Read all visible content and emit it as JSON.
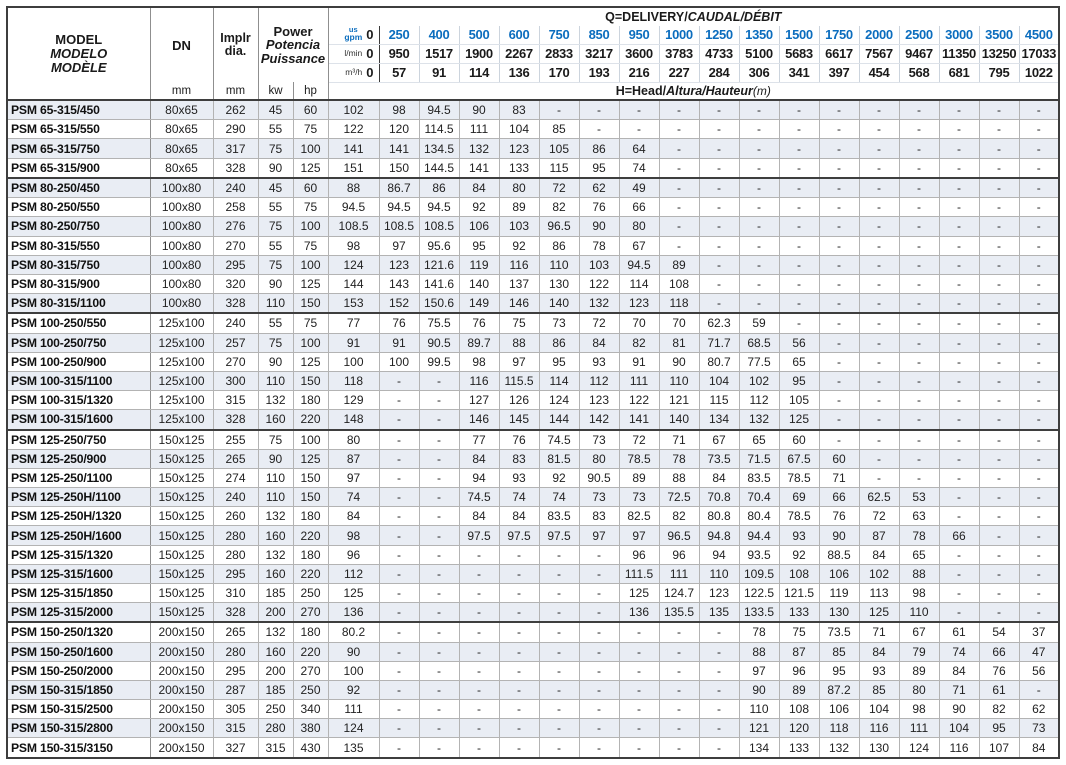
{
  "colors": {
    "accent_blue": "#0b6dbe",
    "row_shade": "#e9edf4",
    "grid_line": "#b3b3b3",
    "heavy_line": "#3e3e3e"
  },
  "header": {
    "model_label": [
      "MODEL",
      "MODELO",
      "MODÈLE"
    ],
    "dn_label": "DN",
    "impeller_label": [
      "Implr",
      "dia."
    ],
    "power_label": [
      "Power",
      "Potencia",
      "Puissance"
    ],
    "units": {
      "dn_unit": "mm",
      "dia_unit": "mm",
      "kw": "kw",
      "hp": "hp"
    },
    "q_title": {
      "plain": "Q=DELIVERY/",
      "italic": "CAUDAL/DÉBIT"
    },
    "h_title": {
      "plain": "H=Head/",
      "italic": "Altura/Hauteur",
      "suffix": "(m)"
    },
    "flow_rows": [
      {
        "unit_top": "us",
        "unit": "gpm",
        "values": [
          "0",
          "250",
          "400",
          "500",
          "600",
          "750",
          "850",
          "950",
          "1000",
          "1250",
          "1350",
          "1500",
          "1750",
          "2000",
          "2500",
          "3000",
          "3500",
          "4500"
        ]
      },
      {
        "unit_top": "",
        "unit": "l/min",
        "values": [
          "0",
          "950",
          "1517",
          "1900",
          "2267",
          "2833",
          "3217",
          "3600",
          "3783",
          "4733",
          "5100",
          "5683",
          "6617",
          "7567",
          "9467",
          "11350",
          "13250",
          "17033"
        ]
      },
      {
        "unit_top": "",
        "unit": "m³/h",
        "values": [
          "0",
          "57",
          "91",
          "114",
          "136",
          "170",
          "193",
          "216",
          "227",
          "284",
          "306",
          "341",
          "397",
          "454",
          "568",
          "681",
          "795",
          "1022"
        ]
      }
    ]
  },
  "rows": [
    {
      "model": "PSM 65-315/450",
      "dn": "80x65",
      "dia": "262",
      "kw": "45",
      "hp": "60",
      "heads": [
        "102",
        "98",
        "94.5",
        "90",
        "83",
        "-",
        "-",
        "-",
        "-",
        "-",
        "-",
        "-",
        "-",
        "-",
        "-",
        "-",
        "-",
        "-"
      ]
    },
    {
      "model": "PSM 65-315/550",
      "dn": "80x65",
      "dia": "290",
      "kw": "55",
      "hp": "75",
      "heads": [
        "122",
        "120",
        "114.5",
        "111",
        "104",
        "85",
        "-",
        "-",
        "-",
        "-",
        "-",
        "-",
        "-",
        "-",
        "-",
        "-",
        "-",
        "-"
      ]
    },
    {
      "model": "PSM 65-315/750",
      "dn": "80x65",
      "dia": "317",
      "kw": "75",
      "hp": "100",
      "heads": [
        "141",
        "141",
        "134.5",
        "132",
        "123",
        "105",
        "86",
        "64",
        "-",
        "-",
        "-",
        "-",
        "-",
        "-",
        "-",
        "-",
        "-",
        "-"
      ]
    },
    {
      "model": "PSM 65-315/900",
      "dn": "80x65",
      "dia": "328",
      "kw": "90",
      "hp": "125",
      "heads": [
        "151",
        "150",
        "144.5",
        "141",
        "133",
        "115",
        "95",
        "74",
        "-",
        "-",
        "-",
        "-",
        "-",
        "-",
        "-",
        "-",
        "-",
        "-"
      ]
    },
    {
      "model": "PSM 80-250/450",
      "dn": "100x80",
      "dia": "240",
      "kw": "45",
      "hp": "60",
      "heads": [
        "88",
        "86.7",
        "86",
        "84",
        "80",
        "72",
        "62",
        "49",
        "-",
        "-",
        "-",
        "-",
        "-",
        "-",
        "-",
        "-",
        "-",
        "-"
      ]
    },
    {
      "model": "PSM 80-250/550",
      "dn": "100x80",
      "dia": "258",
      "kw": "55",
      "hp": "75",
      "heads": [
        "94.5",
        "94.5",
        "94.5",
        "92",
        "89",
        "82",
        "76",
        "66",
        "-",
        "-",
        "-",
        "-",
        "-",
        "-",
        "-",
        "-",
        "-",
        "-"
      ]
    },
    {
      "model": "PSM 80-250/750",
      "dn": "100x80",
      "dia": "276",
      "kw": "75",
      "hp": "100",
      "heads": [
        "108.5",
        "108.5",
        "108.5",
        "106",
        "103",
        "96.5",
        "90",
        "80",
        "-",
        "-",
        "-",
        "-",
        "-",
        "-",
        "-",
        "-",
        "-",
        "-"
      ]
    },
    {
      "model": "PSM 80-315/550",
      "dn": "100x80",
      "dia": "270",
      "kw": "55",
      "hp": "75",
      "heads": [
        "98",
        "97",
        "95.6",
        "95",
        "92",
        "86",
        "78",
        "67",
        "-",
        "-",
        "-",
        "-",
        "-",
        "-",
        "-",
        "-",
        "-",
        "-"
      ]
    },
    {
      "model": "PSM 80-315/750",
      "dn": "100x80",
      "dia": "295",
      "kw": "75",
      "hp": "100",
      "heads": [
        "124",
        "123",
        "121.6",
        "119",
        "116",
        "110",
        "103",
        "94.5",
        "89",
        "-",
        "-",
        "-",
        "-",
        "-",
        "-",
        "-",
        "-",
        "-"
      ]
    },
    {
      "model": "PSM 80-315/900",
      "dn": "100x80",
      "dia": "320",
      "kw": "90",
      "hp": "125",
      "heads": [
        "144",
        "143",
        "141.6",
        "140",
        "137",
        "130",
        "122",
        "114",
        "108",
        "-",
        "-",
        "-",
        "-",
        "-",
        "-",
        "-",
        "-",
        "-"
      ]
    },
    {
      "model": "PSM 80-315/1100",
      "dn": "100x80",
      "dia": "328",
      "kw": "110",
      "hp": "150",
      "heads": [
        "153",
        "152",
        "150.6",
        "149",
        "146",
        "140",
        "132",
        "123",
        "118",
        "-",
        "-",
        "-",
        "-",
        "-",
        "-",
        "-",
        "-",
        "-"
      ]
    },
    {
      "model": "PSM 100-250/550",
      "dn": "125x100",
      "dia": "240",
      "kw": "55",
      "hp": "75",
      "heads": [
        "77",
        "76",
        "75.5",
        "76",
        "75",
        "73",
        "72",
        "70",
        "70",
        "62.3",
        "59",
        "-",
        "-",
        "-",
        "-",
        "-",
        "-",
        "-"
      ]
    },
    {
      "model": "PSM 100-250/750",
      "dn": "125x100",
      "dia": "257",
      "kw": "75",
      "hp": "100",
      "heads": [
        "91",
        "91",
        "90.5",
        "89.7",
        "88",
        "86",
        "84",
        "82",
        "81",
        "71.7",
        "68.5",
        "56",
        "-",
        "-",
        "-",
        "-",
        "-",
        "-"
      ]
    },
    {
      "model": "PSM 100-250/900",
      "dn": "125x100",
      "dia": "270",
      "kw": "90",
      "hp": "125",
      "heads": [
        "100",
        "100",
        "99.5",
        "98",
        "97",
        "95",
        "93",
        "91",
        "90",
        "80.7",
        "77.5",
        "65",
        "-",
        "-",
        "-",
        "-",
        "-",
        "-"
      ]
    },
    {
      "model": "PSM 100-315/1100",
      "dn": "125x100",
      "dia": "300",
      "kw": "110",
      "hp": "150",
      "heads": [
        "118",
        "-",
        "-",
        "116",
        "115.5",
        "114",
        "112",
        "111",
        "110",
        "104",
        "102",
        "95",
        "-",
        "-",
        "-",
        "-",
        "-",
        "-"
      ]
    },
    {
      "model": "PSM 100-315/1320",
      "dn": "125x100",
      "dia": "315",
      "kw": "132",
      "hp": "180",
      "heads": [
        "129",
        "-",
        "-",
        "127",
        "126",
        "124",
        "123",
        "122",
        "121",
        "115",
        "112",
        "105",
        "-",
        "-",
        "-",
        "-",
        "-",
        "-"
      ]
    },
    {
      "model": "PSM 100-315/1600",
      "dn": "125x100",
      "dia": "328",
      "kw": "160",
      "hp": "220",
      "heads": [
        "148",
        "-",
        "-",
        "146",
        "145",
        "144",
        "142",
        "141",
        "140",
        "134",
        "132",
        "125",
        "-",
        "-",
        "-",
        "-",
        "-",
        "-"
      ]
    },
    {
      "model": "PSM 125-250/750",
      "dn": "150x125",
      "dia": "255",
      "kw": "75",
      "hp": "100",
      "heads": [
        "80",
        "-",
        "-",
        "77",
        "76",
        "74.5",
        "73",
        "72",
        "71",
        "67",
        "65",
        "60",
        "-",
        "-",
        "-",
        "-",
        "-",
        "-"
      ]
    },
    {
      "model": "PSM 125-250/900",
      "dn": "150x125",
      "dia": "265",
      "kw": "90",
      "hp": "125",
      "heads": [
        "87",
        "-",
        "-",
        "84",
        "83",
        "81.5",
        "80",
        "78.5",
        "78",
        "73.5",
        "71.5",
        "67.5",
        "60",
        "-",
        "-",
        "-",
        "-",
        "-"
      ]
    },
    {
      "model": "PSM 125-250/1100",
      "dn": "150x125",
      "dia": "274",
      "kw": "110",
      "hp": "150",
      "heads": [
        "97",
        "-",
        "-",
        "94",
        "93",
        "92",
        "90.5",
        "89",
        "88",
        "84",
        "83.5",
        "78.5",
        "71",
        "-",
        "-",
        "-",
        "-",
        "-"
      ]
    },
    {
      "model": "PSM 125-250H/1100",
      "dn": "150x125",
      "dia": "240",
      "kw": "110",
      "hp": "150",
      "heads": [
        "74",
        "-",
        "-",
        "74.5",
        "74",
        "74",
        "73",
        "73",
        "72.5",
        "70.8",
        "70.4",
        "69",
        "66",
        "62.5",
        "53",
        "-",
        "-",
        "-"
      ]
    },
    {
      "model": "PSM 125-250H/1320",
      "dn": "150x125",
      "dia": "260",
      "kw": "132",
      "hp": "180",
      "heads": [
        "84",
        "-",
        "-",
        "84",
        "84",
        "83.5",
        "83",
        "82.5",
        "82",
        "80.8",
        "80.4",
        "78.5",
        "76",
        "72",
        "63",
        "-",
        "-",
        "-"
      ]
    },
    {
      "model": "PSM 125-250H/1600",
      "dn": "150x125",
      "dia": "280",
      "kw": "160",
      "hp": "220",
      "heads": [
        "98",
        "-",
        "-",
        "97.5",
        "97.5",
        "97.5",
        "97",
        "97",
        "96.5",
        "94.8",
        "94.4",
        "93",
        "90",
        "87",
        "78",
        "66",
        "-",
        "-"
      ]
    },
    {
      "model": "PSM 125-315/1320",
      "dn": "150x125",
      "dia": "280",
      "kw": "132",
      "hp": "180",
      "heads": [
        "96",
        "-",
        "-",
        "-",
        "-",
        "-",
        "-",
        "96",
        "96",
        "94",
        "93.5",
        "92",
        "88.5",
        "84",
        "65",
        "-",
        "-",
        "-"
      ]
    },
    {
      "model": "PSM 125-315/1600",
      "dn": "150x125",
      "dia": "295",
      "kw": "160",
      "hp": "220",
      "heads": [
        "112",
        "-",
        "-",
        "-",
        "-",
        "-",
        "-",
        "111.5",
        "111",
        "110",
        "109.5",
        "108",
        "106",
        "102",
        "88",
        "-",
        "-",
        "-"
      ]
    },
    {
      "model": "PSM 125-315/1850",
      "dn": "150x125",
      "dia": "310",
      "kw": "185",
      "hp": "250",
      "heads": [
        "125",
        "-",
        "-",
        "-",
        "-",
        "-",
        "-",
        "125",
        "124.7",
        "123",
        "122.5",
        "121.5",
        "119",
        "113",
        "98",
        "-",
        "-",
        "-"
      ]
    },
    {
      "model": "PSM 125-315/2000",
      "dn": "150x125",
      "dia": "328",
      "kw": "200",
      "hp": "270",
      "heads": [
        "136",
        "-",
        "-",
        "-",
        "-",
        "-",
        "-",
        "136",
        "135.5",
        "135",
        "133.5",
        "133",
        "130",
        "125",
        "110",
        "-",
        "-",
        "-"
      ]
    },
    {
      "model": "PSM 150-250/1320",
      "dn": "200x150",
      "dia": "265",
      "kw": "132",
      "hp": "180",
      "heads": [
        "80.2",
        "-",
        "-",
        "-",
        "-",
        "-",
        "-",
        "-",
        "-",
        "-",
        "78",
        "75",
        "73.5",
        "71",
        "67",
        "61",
        "54",
        "37"
      ]
    },
    {
      "model": "PSM 150-250/1600",
      "dn": "200x150",
      "dia": "280",
      "kw": "160",
      "hp": "220",
      "heads": [
        "90",
        "-",
        "-",
        "-",
        "-",
        "-",
        "-",
        "-",
        "-",
        "-",
        "88",
        "87",
        "85",
        "84",
        "79",
        "74",
        "66",
        "47"
      ]
    },
    {
      "model": "PSM 150-250/2000",
      "dn": "200x150",
      "dia": "295",
      "kw": "200",
      "hp": "270",
      "heads": [
        "100",
        "-",
        "-",
        "-",
        "-",
        "-",
        "-",
        "-",
        "-",
        "-",
        "97",
        "96",
        "95",
        "93",
        "89",
        "84",
        "76",
        "56"
      ]
    },
    {
      "model": "PSM 150-315/1850",
      "dn": "200x150",
      "dia": "287",
      "kw": "185",
      "hp": "250",
      "heads": [
        "92",
        "-",
        "-",
        "-",
        "-",
        "-",
        "-",
        "-",
        "-",
        "-",
        "90",
        "89",
        "87.2",
        "85",
        "80",
        "71",
        "61",
        "-"
      ]
    },
    {
      "model": "PSM 150-315/2500",
      "dn": "200x150",
      "dia": "305",
      "kw": "250",
      "hp": "340",
      "heads": [
        "111",
        "-",
        "-",
        "-",
        "-",
        "-",
        "-",
        "-",
        "-",
        "-",
        "110",
        "108",
        "106",
        "104",
        "98",
        "90",
        "82",
        "62"
      ]
    },
    {
      "model": "PSM 150-315/2800",
      "dn": "200x150",
      "dia": "315",
      "kw": "280",
      "hp": "380",
      "heads": [
        "124",
        "-",
        "-",
        "-",
        "-",
        "-",
        "-",
        "-",
        "-",
        "-",
        "121",
        "120",
        "118",
        "116",
        "111",
        "104",
        "95",
        "73"
      ]
    },
    {
      "model": "PSM 150-315/3150",
      "dn": "200x150",
      "dia": "327",
      "kw": "315",
      "hp": "430",
      "heads": [
        "135",
        "-",
        "-",
        "-",
        "-",
        "-",
        "-",
        "-",
        "-",
        "-",
        "134",
        "133",
        "132",
        "130",
        "124",
        "116",
        "107",
        "84"
      ]
    }
  ]
}
